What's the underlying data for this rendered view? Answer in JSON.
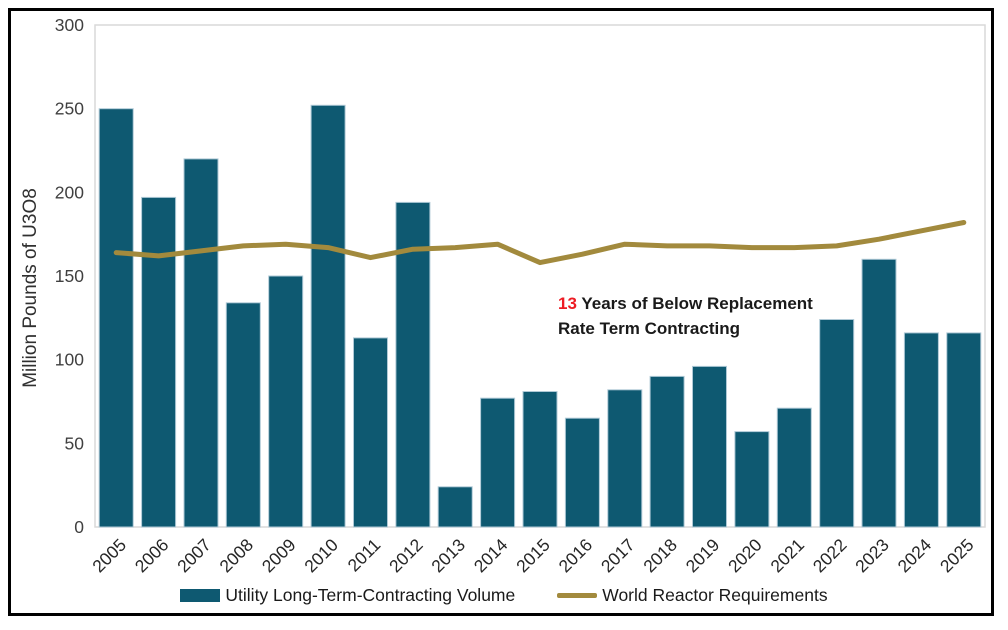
{
  "frame": {
    "border_color": "#000000",
    "background": "#FFFFFF"
  },
  "chart_data": {
    "type": "bar",
    "subtype": "bar-with-line-overlay",
    "title": "",
    "xlabel": "",
    "ylabel": "Million Pounds of U3O8",
    "ylim": [
      0,
      300
    ],
    "yticks": [
      0,
      50,
      100,
      150,
      200,
      250,
      300
    ],
    "grid": false,
    "legend_position": "bottom",
    "plot_border_color": "#D9D9D9",
    "categories": [
      "2005",
      "2006",
      "2007",
      "2008",
      "2009",
      "2010",
      "2011",
      "2012",
      "2013",
      "2014",
      "2015",
      "2016",
      "2017",
      "2018",
      "2019",
      "2020",
      "2021",
      "2022",
      "2023",
      "2024",
      "2025"
    ],
    "series": [
      {
        "name": "Utility Long-Term-Contracting Volume",
        "type": "bar",
        "color": "#0E5971",
        "border_color": "#AFC9D6",
        "values": [
          250,
          197,
          220,
          134,
          150,
          252,
          113,
          194,
          24,
          77,
          81,
          65,
          82,
          90,
          96,
          57,
          71,
          124,
          160,
          116,
          116
        ]
      },
      {
        "name": "World Reactor Requirements",
        "type": "line",
        "color": "#A28A3D",
        "values": [
          164,
          162,
          165,
          168,
          169,
          167,
          161,
          166,
          167,
          169,
          158,
          163,
          169,
          168,
          168,
          167,
          167,
          168,
          172,
          177,
          182
        ]
      }
    ]
  },
  "annotation": {
    "highlight": "13",
    "highlight_color": "#ED1C24",
    "line1": " Years of Below Replacement",
    "line2": "Rate Term Contracting"
  }
}
